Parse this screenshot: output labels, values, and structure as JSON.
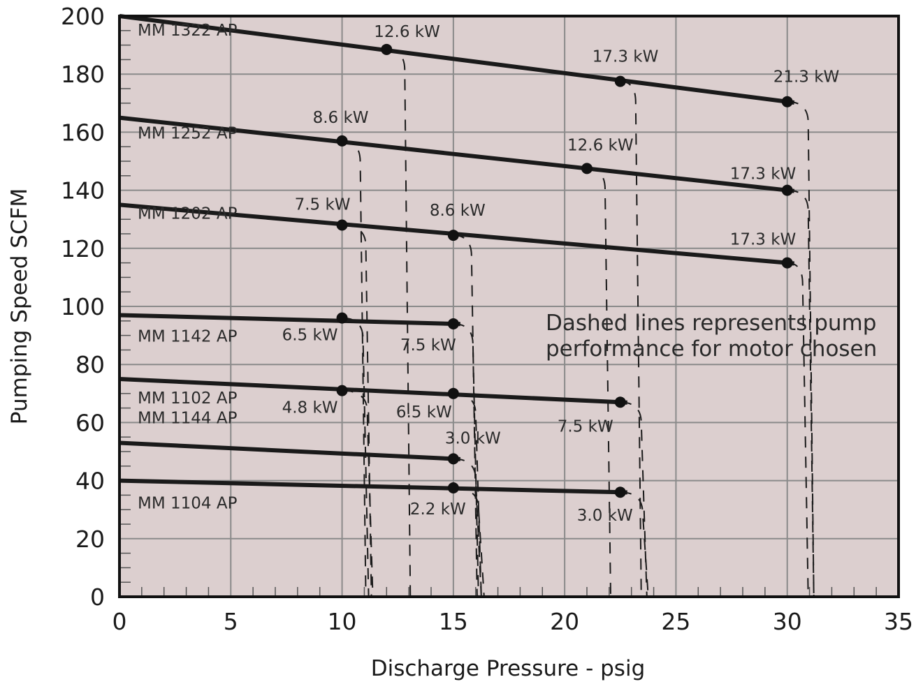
{
  "chart_data": {
    "type": "line",
    "xlabel": "Discharge Pressure - psig",
    "ylabel": "Pumping Speed SCFM",
    "xlim": [
      0,
      35
    ],
    "ylim": [
      0,
      200
    ],
    "x_ticks": [
      "0",
      "5",
      "10",
      "15",
      "20",
      "25",
      "30",
      "35"
    ],
    "y_ticks": [
      "0",
      "20",
      "40",
      "60",
      "80",
      "100",
      "120",
      "140",
      "160",
      "180",
      "200"
    ],
    "grid": true,
    "colors": {
      "plot_bg": "#dccfcf",
      "grid": "#8a8a8a",
      "line": "#1a1a1a",
      "frame": "#111111"
    },
    "series": [
      {
        "name": "MM 1322 AP",
        "x": [
          0,
          30
        ],
        "y": [
          200,
          170.5
        ],
        "points": [
          {
            "x": 12,
            "y": 188.5,
            "label": "12.6 kW"
          },
          {
            "x": 22.5,
            "y": 177.5,
            "label": "17.3 kW"
          },
          {
            "x": 30,
            "y": 170.5,
            "label": "21.3 kW"
          }
        ]
      },
      {
        "name": "MM 1252 AP",
        "x": [
          0,
          30
        ],
        "y": [
          165,
          140
        ],
        "points": [
          {
            "x": 10,
            "y": 157,
            "label": "8.6 kW"
          },
          {
            "x": 21,
            "y": 147.5,
            "label": "12.6 kW"
          },
          {
            "x": 30,
            "y": 140,
            "label": "17.3 kW"
          }
        ]
      },
      {
        "name": "MM 1202 AP",
        "x": [
          0,
          30
        ],
        "y": [
          135,
          115
        ],
        "points": [
          {
            "x": 10,
            "y": 128,
            "label": "7.5 kW"
          },
          {
            "x": 15,
            "y": 124.5,
            "label": "8.6 kW"
          },
          {
            "x": 30,
            "y": 115,
            "label": "17.3 kW"
          }
        ]
      },
      {
        "name": "MM 1142 AP",
        "x": [
          0,
          15
        ],
        "y": [
          97,
          94
        ],
        "points": [
          {
            "x": 10,
            "y": 96,
            "label": "6.5 kW"
          },
          {
            "x": 15,
            "y": 94,
            "label": "7.5 kW"
          }
        ]
      },
      {
        "name": "MM 1102 AP",
        "x": [
          0,
          22.5
        ],
        "y": [
          75,
          67
        ],
        "points": [
          {
            "x": 10,
            "y": 71,
            "label": "4.8 kW"
          },
          {
            "x": 15,
            "y": 70,
            "label": "6.5 kW"
          },
          {
            "x": 22.5,
            "y": 67,
            "label": "7.5 kW"
          }
        ]
      },
      {
        "name": "MM 1144 AP",
        "x": [
          0,
          15
        ],
        "y": [
          53,
          47.5
        ],
        "points": [
          {
            "x": 15,
            "y": 47.5,
            "label": "3.0 kW"
          }
        ]
      },
      {
        "name": "MM 1104 AP",
        "x": [
          0,
          22.5
        ],
        "y": [
          40,
          36
        ],
        "points": [
          {
            "x": 15,
            "y": 37.5,
            "label": "2.2 kW"
          },
          {
            "x": 22.5,
            "y": 36,
            "label": "3.0 kW"
          }
        ]
      }
    ],
    "annotations": [
      "Dashed lines represents pump",
      "performance for motor chosen"
    ]
  }
}
